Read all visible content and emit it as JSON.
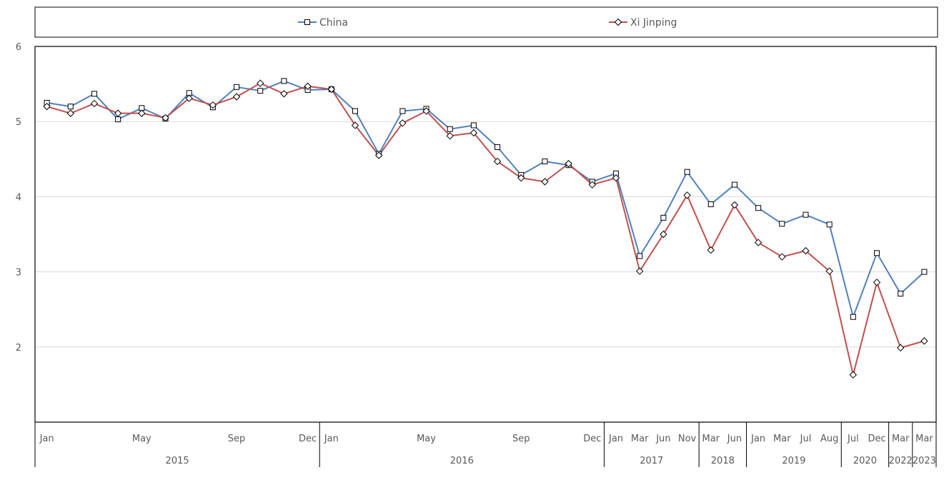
{
  "chart_data": {
    "type": "line",
    "title": "",
    "xlabel": "",
    "ylabel": "",
    "ylim": [
      1,
      6
    ],
    "yticks": [
      2,
      3,
      4,
      5,
      6
    ],
    "grid": "horizontal",
    "legend_position": "top",
    "month_labels": [
      "Jan",
      "",
      "",
      "",
      "May",
      "",
      "",
      "",
      "Sep",
      "",
      "",
      "Dec",
      "Jan",
      "",
      "",
      "",
      "May",
      "",
      "",
      "",
      "Sep",
      "",
      "",
      "Dec",
      "Jan",
      "Mar",
      "Jun",
      "Nov",
      "Mar",
      "Jun",
      "Jan",
      "Mar",
      "Jul",
      "Aug",
      "Jul",
      "Dec",
      "Mar",
      "Mar"
    ],
    "years": [
      {
        "label": "2015",
        "start": 0,
        "end": 11
      },
      {
        "label": "2016",
        "start": 12,
        "end": 23
      },
      {
        "label": "2017",
        "start": 24,
        "end": 27
      },
      {
        "label": "2018",
        "start": 28,
        "end": 29
      },
      {
        "label": "2019",
        "start": 30,
        "end": 33
      },
      {
        "label": "2020",
        "start": 34,
        "end": 35
      },
      {
        "label": "2022",
        "start": 36,
        "end": 36
      },
      {
        "label": "2023",
        "start": 37,
        "end": 37
      }
    ],
    "series": [
      {
        "name": "China",
        "color": "#4f81bd",
        "marker": "square",
        "values": [
          5.25,
          5.2,
          5.37,
          5.03,
          5.18,
          5.04,
          5.38,
          5.19,
          5.46,
          5.41,
          5.54,
          5.42,
          5.43,
          5.14,
          4.57,
          5.14,
          5.17,
          4.9,
          4.95,
          4.66,
          4.29,
          4.47,
          4.42,
          4.2,
          4.31,
          3.21,
          3.72,
          4.33,
          3.9,
          4.16,
          3.85,
          3.64,
          3.76,
          3.63,
          2.4,
          3.25,
          2.71,
          3.0
        ]
      },
      {
        "name": "Xi Jinping",
        "color": "#c0504d",
        "marker": "diamond",
        "values": [
          5.2,
          5.11,
          5.24,
          5.11,
          5.11,
          5.05,
          5.31,
          5.22,
          5.33,
          5.51,
          5.37,
          5.47,
          5.43,
          4.95,
          4.55,
          4.98,
          5.14,
          4.81,
          4.85,
          4.47,
          4.25,
          4.2,
          4.44,
          4.16,
          4.25,
          3.01,
          3.5,
          4.02,
          3.29,
          3.89,
          3.39,
          3.2,
          3.28,
          3.01,
          1.63,
          2.86,
          1.99,
          2.08
        ]
      }
    ]
  }
}
